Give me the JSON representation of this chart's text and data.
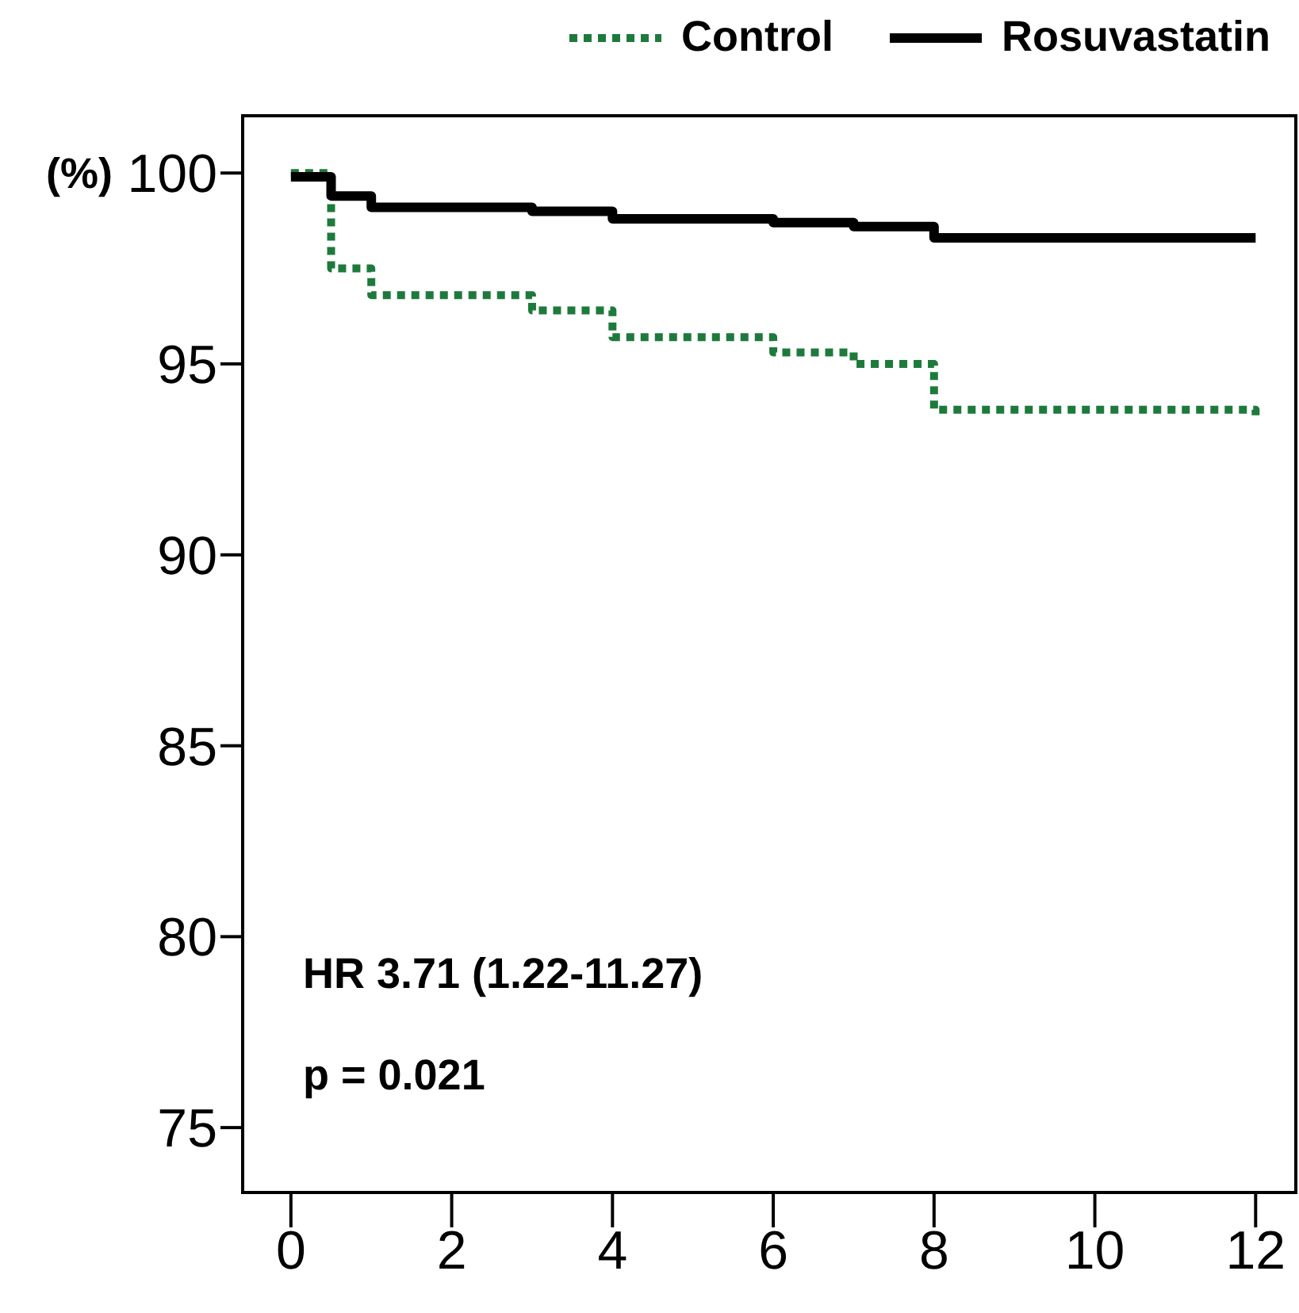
{
  "chart_data": {
    "type": "step",
    "ylabel": "(%)",
    "xlim": [
      -0.6,
      12.5
    ],
    "xticks": [
      0,
      2,
      4,
      6,
      8,
      10,
      12
    ],
    "ylim": [
      73.3,
      101.5
    ],
    "yticks": [
      75,
      80,
      85,
      90,
      95,
      100
    ],
    "legend": "top right",
    "marker": "none",
    "series": [
      {
        "name": "Control",
        "color": "#1e7a3c",
        "line_style": "dotted",
        "x": [
          0,
          0.5,
          1,
          3,
          4,
          6,
          7,
          8,
          12
        ],
        "values": [
          100,
          97.5,
          96.8,
          96.4,
          95.7,
          95.3,
          95.0,
          93.8,
          93.6
        ]
      },
      {
        "name": "Rosuvastatin",
        "color": "#000000",
        "line_style": "solid",
        "x": [
          0,
          0.5,
          1,
          3,
          4,
          6,
          7,
          8,
          12
        ],
        "values": [
          99.9,
          99.4,
          99.1,
          99.0,
          98.8,
          98.7,
          98.6,
          98.3,
          98.3
        ]
      }
    ],
    "annotations": [
      "HR 3.71 (1.22-11.27)",
      "p = 0.021"
    ]
  }
}
